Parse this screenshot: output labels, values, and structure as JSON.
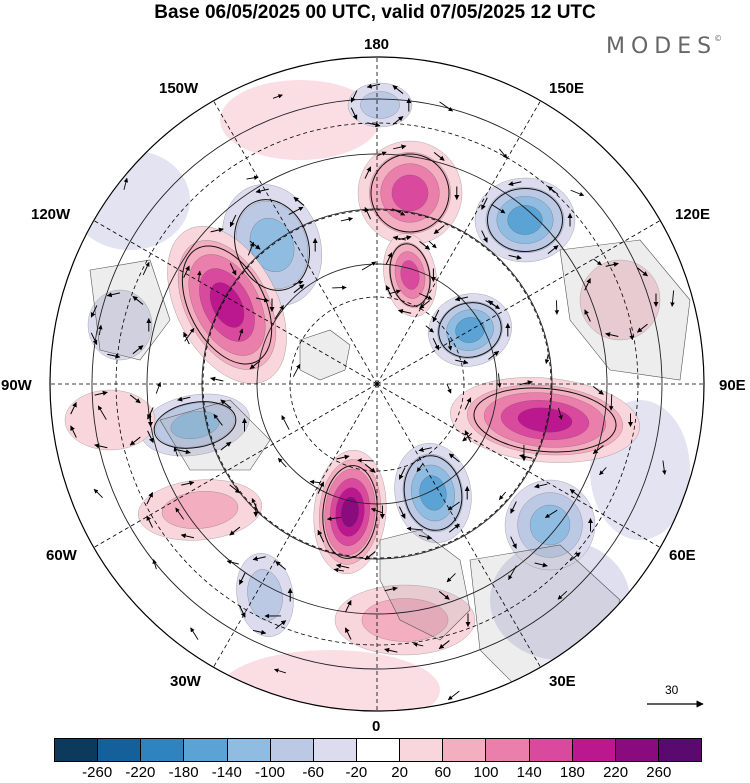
{
  "title": "Base 06/05/2025 00 UTC, valid 07/05/2025 12 UTC",
  "brand": "MODES",
  "brand_mark": "©",
  "longitude_labels": {
    "top": "180",
    "bottom": "0",
    "left": "90W",
    "right": "90E",
    "upper_left_1": "150W",
    "upper_left_2": "120W",
    "upper_right_1": "150E",
    "upper_right_2": "120E",
    "lower_left_1": "60W",
    "lower_left_2": "30W",
    "lower_right_1": "60E",
    "lower_right_2": "30E"
  },
  "reference_vector": {
    "value": "30",
    "icon": "right-arrow-icon"
  },
  "colorbar": {
    "ticks": [
      "-260",
      "-220",
      "-180",
      "-140",
      "-100",
      "-60",
      "-20",
      "20",
      "60",
      "100",
      "140",
      "180",
      "220",
      "260"
    ],
    "colors": [
      "#0b3a5c",
      "#14609a",
      "#2f84c0",
      "#5aa3d4",
      "#8fbce0",
      "#bcc9e4",
      "#dcdcee",
      "#ffffff",
      "#f9d6dc",
      "#f3aec0",
      "#ea7fac",
      "#d94a9e",
      "#bb1890",
      "#8a0b7e",
      "#5a0a6e"
    ]
  },
  "anomaly_centers": [
    {
      "sign": "neg",
      "level": 3
    },
    {
      "sign": "pos",
      "level": 5
    },
    {
      "sign": "neg",
      "level": 3
    },
    {
      "sign": "pos",
      "level": 6
    },
    {
      "sign": "neg",
      "level": 4
    },
    {
      "sign": "pos",
      "level": 4
    },
    {
      "sign": "neg",
      "level": 4
    },
    {
      "sign": "pos",
      "level": 5
    },
    {
      "sign": "neg",
      "level": 4
    },
    {
      "sign": "pos",
      "level": 4
    },
    {
      "sign": "neg",
      "level": 3
    },
    {
      "sign": "pos",
      "level": 2
    },
    {
      "sign": "neg",
      "level": 2
    },
    {
      "sign": "pos",
      "level": 2
    },
    {
      "sign": "neg",
      "level": 2
    },
    {
      "sign": "neg",
      "level": 1
    },
    {
      "sign": "pos",
      "level": 1
    },
    {
      "sign": "pos",
      "level": 1
    }
  ]
}
